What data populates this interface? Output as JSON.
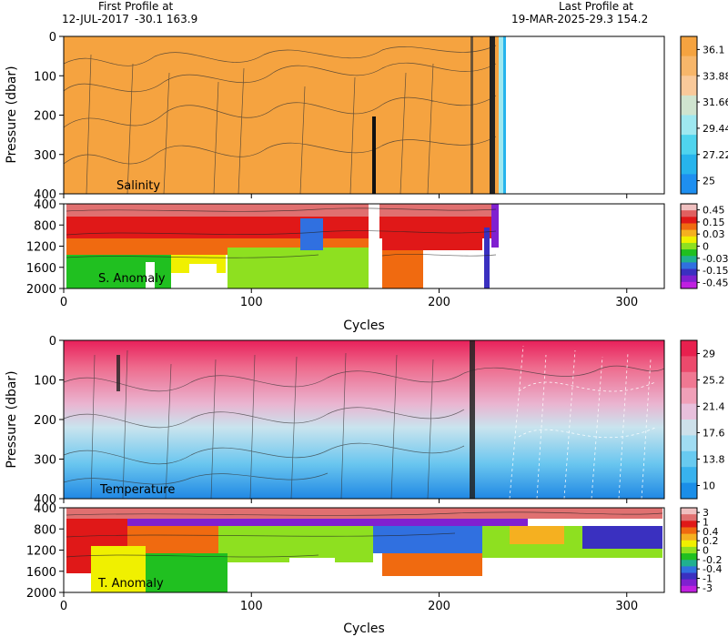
{
  "header": {
    "first_label": "First Profile at",
    "first_date": "12-JUL-2017",
    "first_position": "-30.1  163.9",
    "last_label": "Last Profile at",
    "last_date": "19-MAR-2025",
    "last_position": "-29.3  154.2"
  },
  "chart_data": [
    {
      "type": "heatmap",
      "title": "Salinity",
      "ylabel": "Pressure (dbar)",
      "xlim": [
        0,
        320
      ],
      "ylim": [
        400,
        0
      ],
      "x_ticks": [
        "0",
        "100",
        "200",
        "300"
      ],
      "y_ticks": [
        "0",
        "100",
        "200",
        "300",
        "400"
      ],
      "colorbar_labels": [
        "36.1",
        "33.88",
        "31.66",
        "29.44",
        "27.22",
        "25"
      ],
      "colorbar_colors": [
        "#f5a340",
        "#f7b66a",
        "#f9c99a",
        "#cfe4cf",
        "#9ee8f0",
        "#4fd4ee",
        "#27b4ec",
        "#1e8ff0"
      ],
      "data_extent_cycles": [
        0,
        232
      ],
      "fill_color": "#f5a340"
    },
    {
      "type": "heatmap",
      "title": "S. Anomaly",
      "xlim": [
        0,
        320
      ],
      "ylim": [
        2000,
        400
      ],
      "x_ticks": [
        "0",
        "100",
        "200",
        "300"
      ],
      "y_ticks": [
        "400",
        "800",
        "1200",
        "1600",
        "2000"
      ],
      "xlabel": "Cycles",
      "colorbar_labels": [
        "0.45",
        "0.15",
        "0.03",
        "0",
        "-0.03",
        "-0.15",
        "-0.45"
      ],
      "colorbar_colors": [
        "#f0c0c0",
        "#e06060",
        "#e01818",
        "#f06a10",
        "#f5b020",
        "#f0f000",
        "#8ee020",
        "#20c020",
        "#20b090",
        "#3070e0",
        "#3a30c0",
        "#8020d0",
        "#c020e0"
      ],
      "data_extent_cycles": [
        0,
        232
      ]
    },
    {
      "type": "heatmap",
      "title": "Temperature",
      "ylabel": "Pressure (dbar)",
      "xlim": [
        0,
        320
      ],
      "ylim": [
        400,
        0
      ],
      "x_ticks": [
        "0",
        "100",
        "200",
        "300"
      ],
      "y_ticks": [
        "0",
        "100",
        "200",
        "300",
        "400"
      ],
      "colorbar_labels": [
        "29",
        "25.2",
        "21.4",
        "17.6",
        "13.8",
        "10"
      ],
      "colorbar_colors": [
        "#e8204e",
        "#ec4a6c",
        "#f07892",
        "#f0a0b8",
        "#e8c0dc",
        "#cde0ea",
        "#a0dcf2",
        "#68caf0",
        "#38b2ee",
        "#1a8ee8"
      ],
      "data_extent_cycles": [
        0,
        320
      ]
    },
    {
      "type": "heatmap",
      "title": "T. Anomaly",
      "xlim": [
        0,
        320
      ],
      "ylim": [
        2000,
        400
      ],
      "x_ticks": [
        "0",
        "100",
        "200",
        "300"
      ],
      "y_ticks": [
        "400",
        "800",
        "1200",
        "1600",
        "2000"
      ],
      "xlabel": "Cycles",
      "colorbar_labels": [
        "3",
        "1",
        "0.4",
        "0.2",
        "0",
        "-0.2",
        "-0.4",
        "-1",
        "-3"
      ],
      "colorbar_colors": [
        "#f0c0c0",
        "#e07070",
        "#e01818",
        "#f06a10",
        "#f5b020",
        "#f0f000",
        "#8ee020",
        "#20c020",
        "#20b090",
        "#3070e0",
        "#3a30c0",
        "#8020d0",
        "#c020e0"
      ],
      "data_extent_cycles": [
        0,
        320
      ]
    }
  ]
}
